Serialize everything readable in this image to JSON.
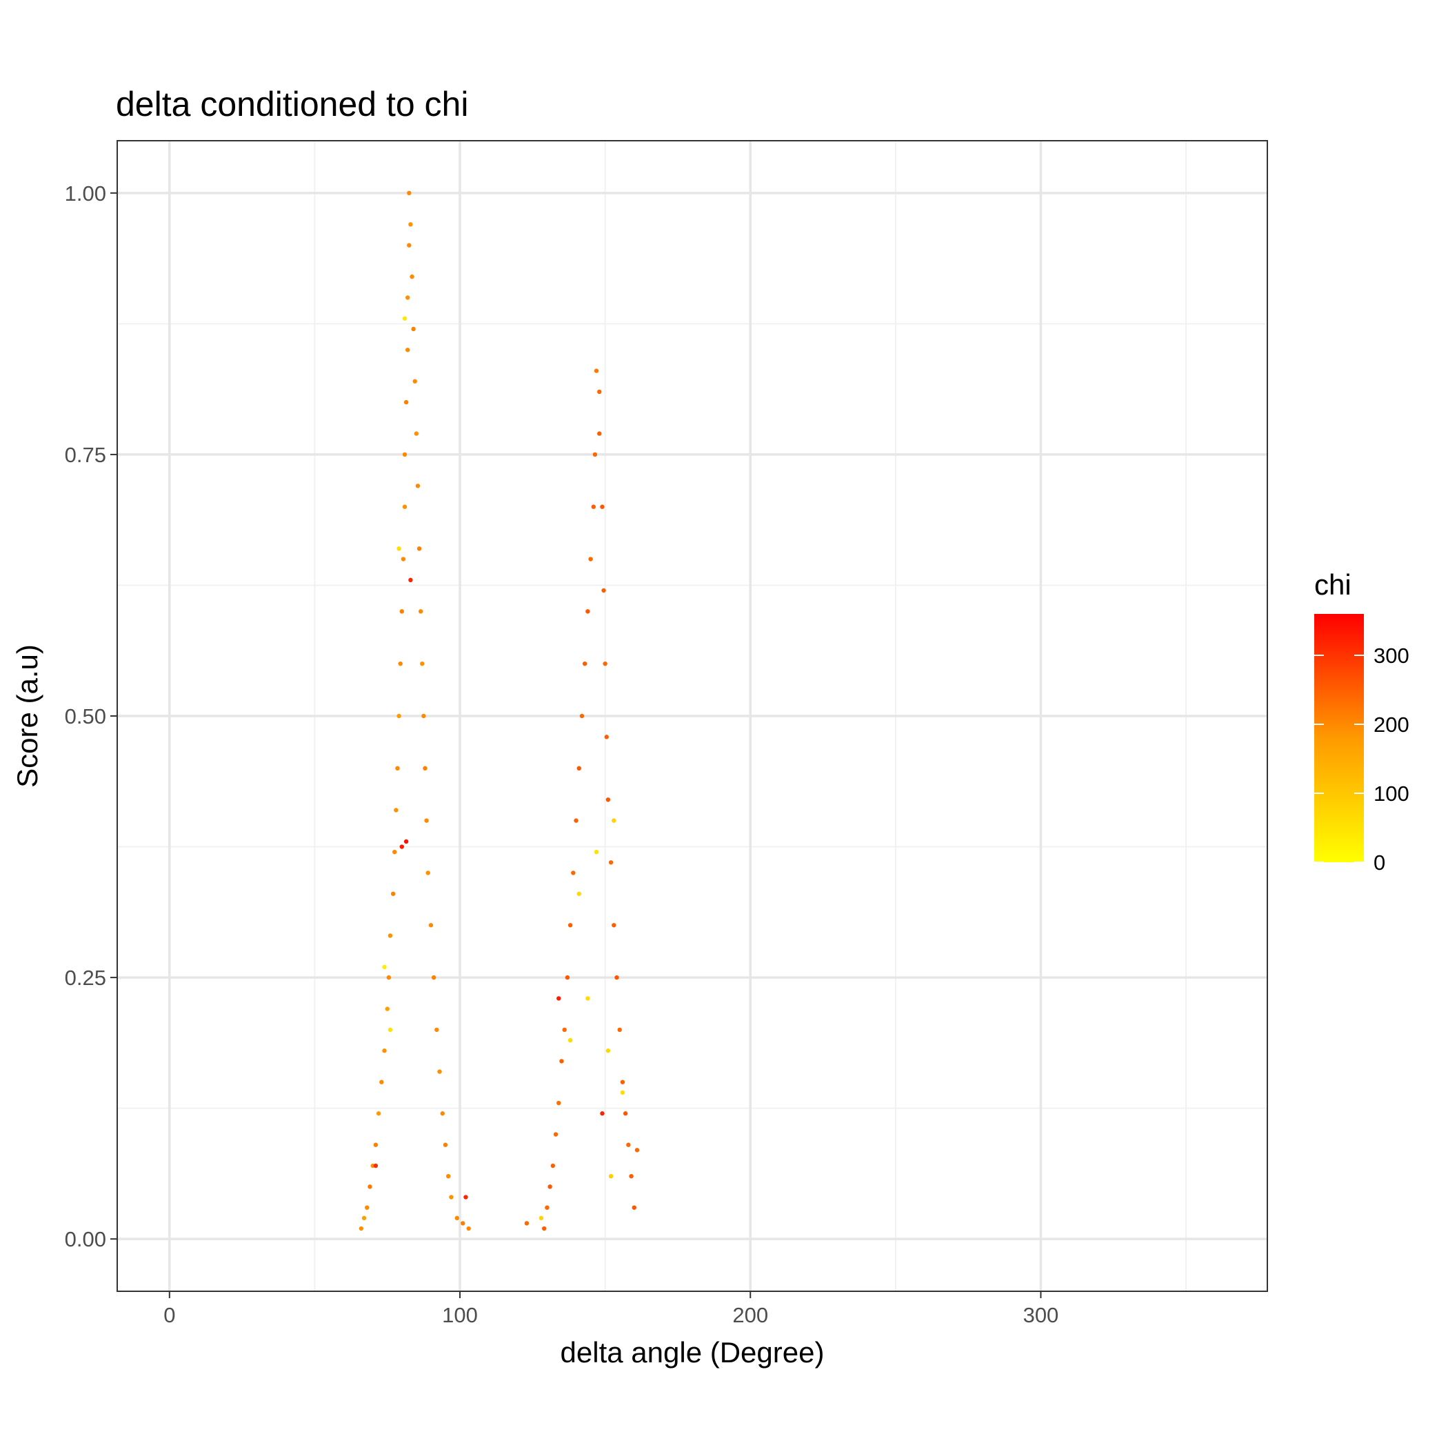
{
  "chart_data": {
    "type": "scatter",
    "title": "delta conditioned to chi",
    "xlabel": "delta angle (Degree)",
    "ylabel": "Score (a.u)",
    "xlim": [
      -18,
      378
    ],
    "ylim": [
      -0.05,
      1.05
    ],
    "x_ticks": [
      0,
      100,
      200,
      300
    ],
    "x_tick_labels": [
      "0",
      "100",
      "200",
      "300"
    ],
    "x_minor_ticks": [
      50,
      150,
      250,
      350
    ],
    "y_ticks": [
      0,
      0.25,
      0.5,
      0.75,
      1.0
    ],
    "y_tick_labels": [
      "0.00",
      "0.25",
      "0.50",
      "0.75",
      "1.00"
    ],
    "y_minor_ticks": [
      0.125,
      0.375,
      0.625,
      0.875
    ],
    "grid": true,
    "legend": {
      "title": "chi",
      "position": "right",
      "kind": "colorbar",
      "range": [
        0,
        360
      ],
      "ticks": [
        0,
        100,
        200,
        300
      ],
      "tick_labels": [
        "0",
        "100",
        "200",
        "300"
      ],
      "colors": {
        "low": "#ffff00",
        "mid": "#ff9a00",
        "high": "#ff0000"
      }
    },
    "series": [
      {
        "description_peak": 1,
        "x_range": [
          66,
          103
        ],
        "peak_x": 82.5,
        "peak_y": 1.0,
        "points": [
          [
            66,
            0.01,
            190
          ],
          [
            67,
            0.02,
            170
          ],
          [
            68,
            0.03,
            200
          ],
          [
            69,
            0.05,
            220
          ],
          [
            70,
            0.07,
            190
          ],
          [
            71,
            0.09,
            210
          ],
          [
            72,
            0.12,
            180
          ],
          [
            73,
            0.15,
            200
          ],
          [
            74,
            0.18,
            190
          ],
          [
            75,
            0.22,
            170
          ],
          [
            75.5,
            0.25,
            200
          ],
          [
            76,
            0.29,
            190
          ],
          [
            77,
            0.33,
            210
          ],
          [
            77.5,
            0.37,
            200
          ],
          [
            78,
            0.41,
            190
          ],
          [
            78.5,
            0.45,
            200
          ],
          [
            79,
            0.5,
            180
          ],
          [
            79.5,
            0.55,
            200
          ],
          [
            80,
            0.6,
            210
          ],
          [
            80.5,
            0.65,
            200
          ],
          [
            81,
            0.7,
            190
          ],
          [
            81,
            0.75,
            200
          ],
          [
            81.5,
            0.8,
            210
          ],
          [
            82,
            0.85,
            200
          ],
          [
            82,
            0.9,
            190
          ],
          [
            82.5,
            0.95,
            200
          ],
          [
            82.5,
            1.0,
            200
          ],
          [
            83,
            0.97,
            190
          ],
          [
            83.5,
            0.92,
            200
          ],
          [
            84,
            0.87,
            210
          ],
          [
            84.5,
            0.82,
            200
          ],
          [
            85,
            0.77,
            190
          ],
          [
            85.5,
            0.72,
            200
          ],
          [
            86,
            0.66,
            210
          ],
          [
            86.5,
            0.6,
            200
          ],
          [
            87,
            0.55,
            190
          ],
          [
            87.5,
            0.5,
            200
          ],
          [
            88,
            0.45,
            210
          ],
          [
            88.5,
            0.4,
            200
          ],
          [
            89,
            0.35,
            190
          ],
          [
            90,
            0.3,
            200
          ],
          [
            91,
            0.25,
            210
          ],
          [
            92,
            0.2,
            200
          ],
          [
            93,
            0.16,
            190
          ],
          [
            94,
            0.12,
            200
          ],
          [
            95,
            0.09,
            210
          ],
          [
            96,
            0.06,
            200
          ],
          [
            97,
            0.04,
            190
          ],
          [
            99,
            0.02,
            200
          ],
          [
            101,
            0.015,
            210
          ],
          [
            102,
            0.04,
            320
          ],
          [
            103,
            0.01,
            200
          ],
          [
            80,
            0.375,
            330
          ],
          [
            81.5,
            0.38,
            340
          ],
          [
            83,
            0.63,
            320
          ],
          [
            79,
            0.66,
            60
          ],
          [
            81,
            0.88,
            40
          ],
          [
            76,
            0.2,
            50
          ],
          [
            74,
            0.26,
            30
          ],
          [
            71,
            0.07,
            310
          ]
        ]
      },
      {
        "description_peak": 2,
        "x_range": [
          123,
          161
        ],
        "peak_x": 147,
        "peak_y": 0.83,
        "points": [
          [
            123,
            0.015,
            240
          ],
          [
            128,
            0.02,
            80
          ],
          [
            129,
            0.01,
            250
          ],
          [
            130,
            0.03,
            240
          ],
          [
            131,
            0.05,
            260
          ],
          [
            132,
            0.07,
            250
          ],
          [
            133,
            0.1,
            240
          ],
          [
            134,
            0.13,
            230
          ],
          [
            135,
            0.17,
            250
          ],
          [
            136,
            0.2,
            240
          ],
          [
            137,
            0.25,
            260
          ],
          [
            138,
            0.3,
            250
          ],
          [
            139,
            0.35,
            240
          ],
          [
            140,
            0.4,
            250
          ],
          [
            141,
            0.45,
            260
          ],
          [
            142,
            0.5,
            240
          ],
          [
            143,
            0.55,
            250
          ],
          [
            144,
            0.6,
            260
          ],
          [
            145,
            0.65,
            240
          ],
          [
            146,
            0.7,
            250
          ],
          [
            146.5,
            0.75,
            240
          ],
          [
            147,
            0.83,
            220
          ],
          [
            148,
            0.81,
            240
          ],
          [
            148,
            0.77,
            250
          ],
          [
            149,
            0.7,
            260
          ],
          [
            149.5,
            0.62,
            250
          ],
          [
            150,
            0.55,
            240
          ],
          [
            150.5,
            0.48,
            250
          ],
          [
            151,
            0.42,
            260
          ],
          [
            152,
            0.36,
            240
          ],
          [
            153,
            0.3,
            250
          ],
          [
            154,
            0.25,
            260
          ],
          [
            155,
            0.2,
            240
          ],
          [
            156,
            0.15,
            250
          ],
          [
            157,
            0.12,
            260
          ],
          [
            158,
            0.09,
            240
          ],
          [
            159,
            0.06,
            250
          ],
          [
            160,
            0.03,
            260
          ],
          [
            161,
            0.085,
            240
          ],
          [
            141,
            0.33,
            70
          ],
          [
            144,
            0.23,
            60
          ],
          [
            147,
            0.37,
            50
          ],
          [
            153,
            0.4,
            80
          ],
          [
            151,
            0.18,
            70
          ],
          [
            156,
            0.14,
            60
          ],
          [
            152,
            0.06,
            90
          ],
          [
            134,
            0.23,
            330
          ],
          [
            149,
            0.12,
            320
          ],
          [
            138,
            0.19,
            60
          ]
        ]
      }
    ]
  }
}
